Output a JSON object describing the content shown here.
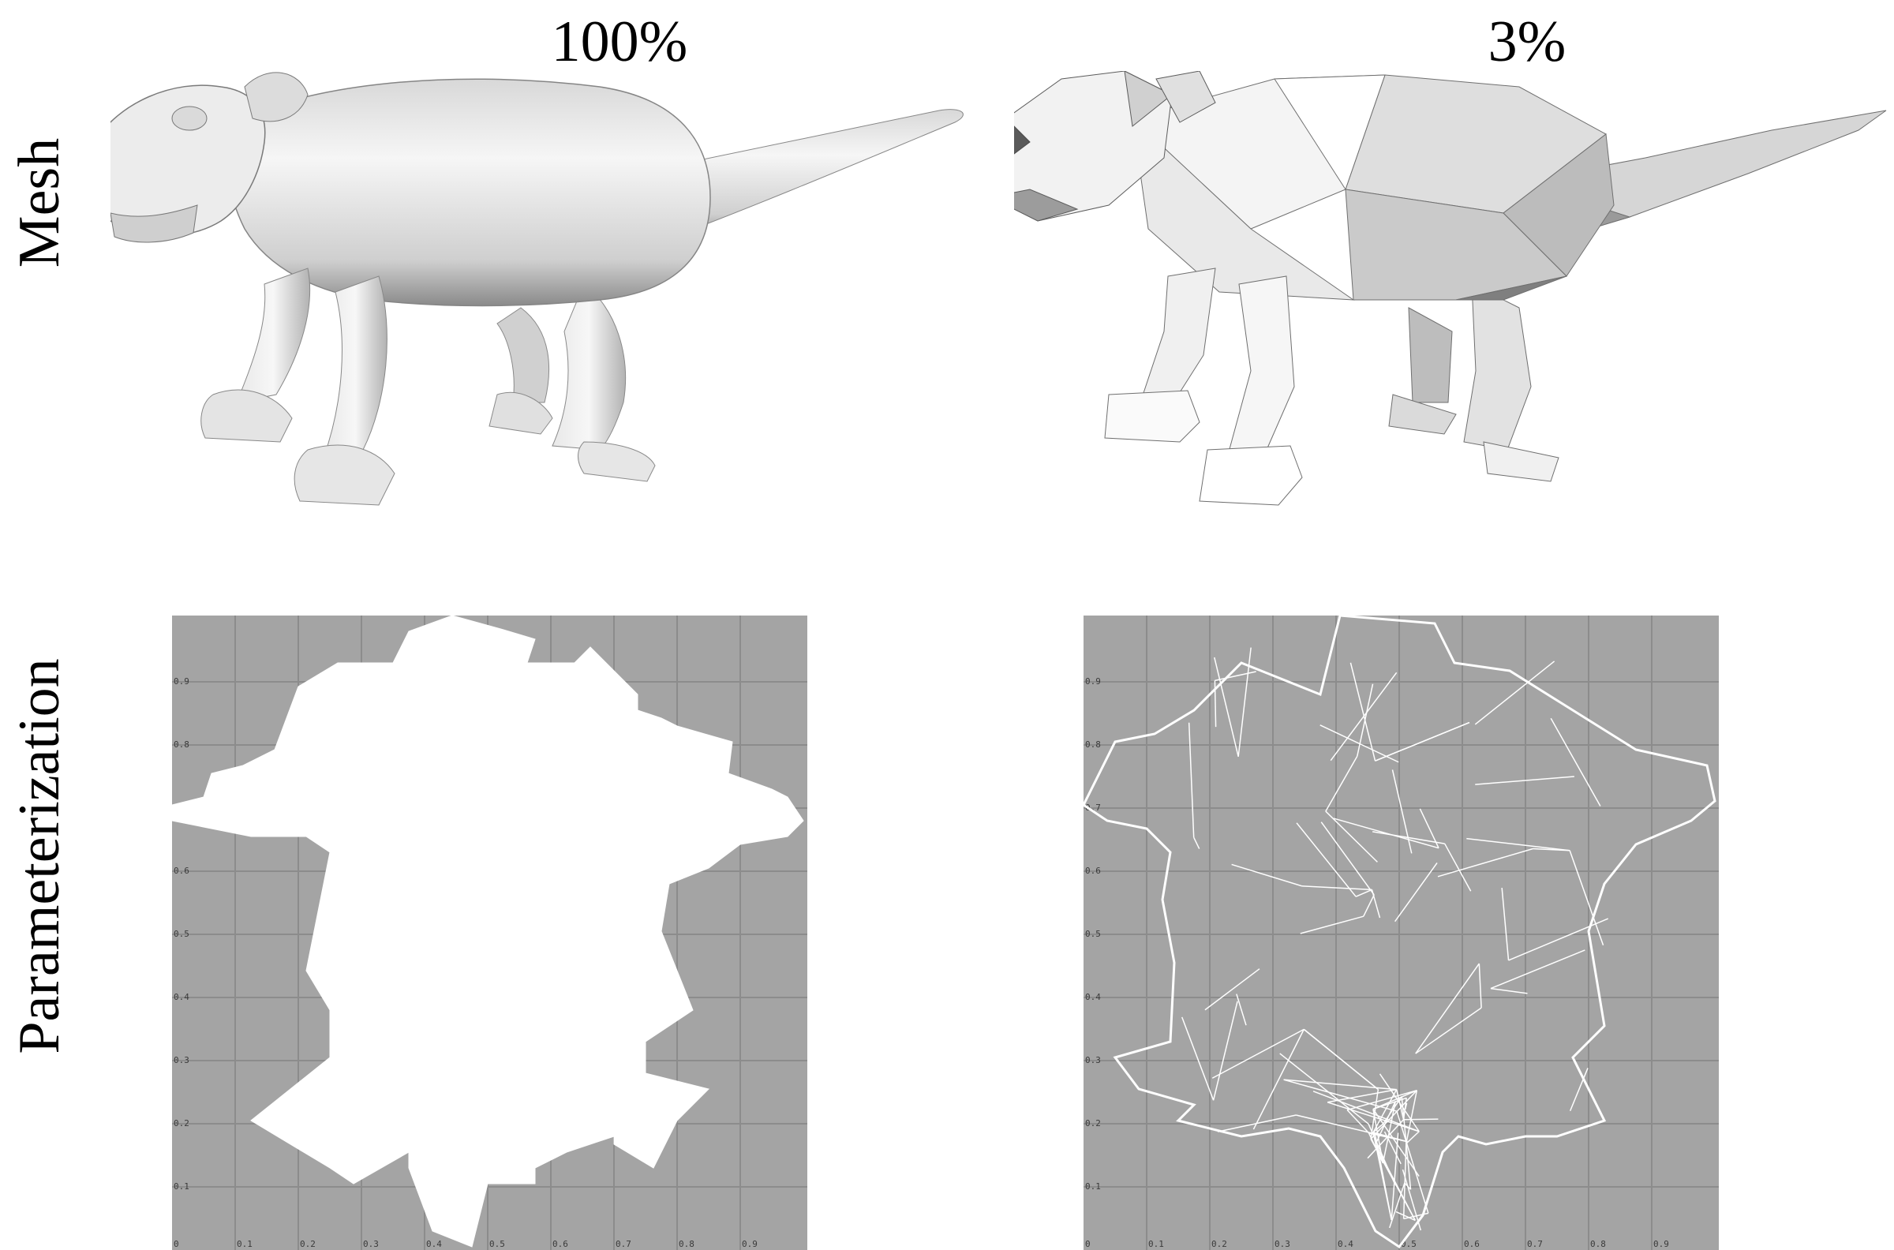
{
  "columns": [
    {
      "id": "full",
      "label": "100%"
    },
    {
      "id": "low",
      "label": "3%"
    }
  ],
  "rows": [
    {
      "id": "mesh",
      "label": "Mesh"
    },
    {
      "id": "param",
      "label": "Parameterization"
    }
  ],
  "uv_grid": {
    "background": "#a4a4a4",
    "grid_color": "#8c8c8c",
    "wire_color": "#ffffff",
    "ticks": [
      "0",
      "0.1",
      "0.2",
      "0.3",
      "0.4",
      "0.5",
      "0.6",
      "0.7",
      "0.8",
      "0.9"
    ]
  },
  "mesh_colors": {
    "light": "#f4f4f4",
    "mid": "#c8c8c8",
    "dark": "#7a7a7a"
  }
}
